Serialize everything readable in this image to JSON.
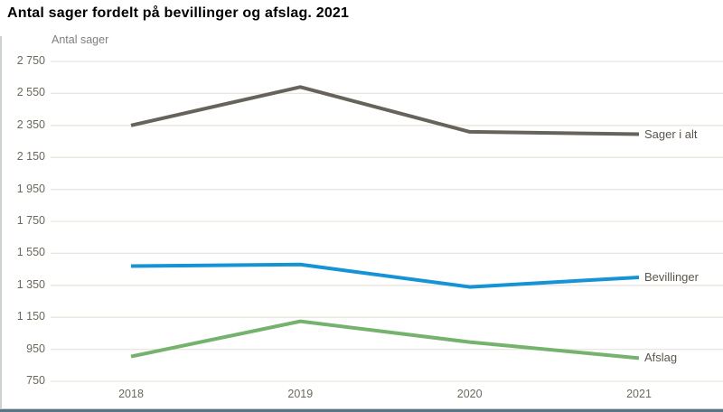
{
  "header": {
    "title": "Antal sager fordelt på bevillinger og afslag. 2021"
  },
  "chart_data": {
    "type": "line",
    "title": "Antal sager fordelt på bevillinger og afslag. 2021",
    "ylabel": "Antal sager",
    "xlabel": "",
    "categories": [
      "2018",
      "2019",
      "2020",
      "2021"
    ],
    "series": [
      {
        "name": "Sager i alt",
        "color": "#66645a",
        "values": [
          2350,
          2590,
          2310,
          2295
        ]
      },
      {
        "name": "Bevillinger",
        "color": "#1593d4",
        "values": [
          1470,
          1480,
          1340,
          1400
        ]
      },
      {
        "name": "Afslag",
        "color": "#74b26e",
        "values": [
          905,
          1125,
          995,
          895
        ]
      }
    ],
    "ylim": [
      750,
      2750
    ],
    "yticks": [
      750,
      950,
      1150,
      1350,
      1550,
      1750,
      1950,
      2150,
      2350,
      2550,
      2750
    ],
    "ytick_labels": [
      "750",
      "950",
      "1 150",
      "1 350",
      "1 550",
      "1 750",
      "1 950",
      "2 150",
      "2 350",
      "2 550",
      "2 750"
    ],
    "grid": true,
    "legend_position": "right-line-end-labels"
  },
  "colors": {
    "gridline": "#e9e6df",
    "tick_text": "#6c685d",
    "series_label_text": "#5a564d",
    "bottom_border": "#577585",
    "left_border": "#ccd2d4"
  }
}
